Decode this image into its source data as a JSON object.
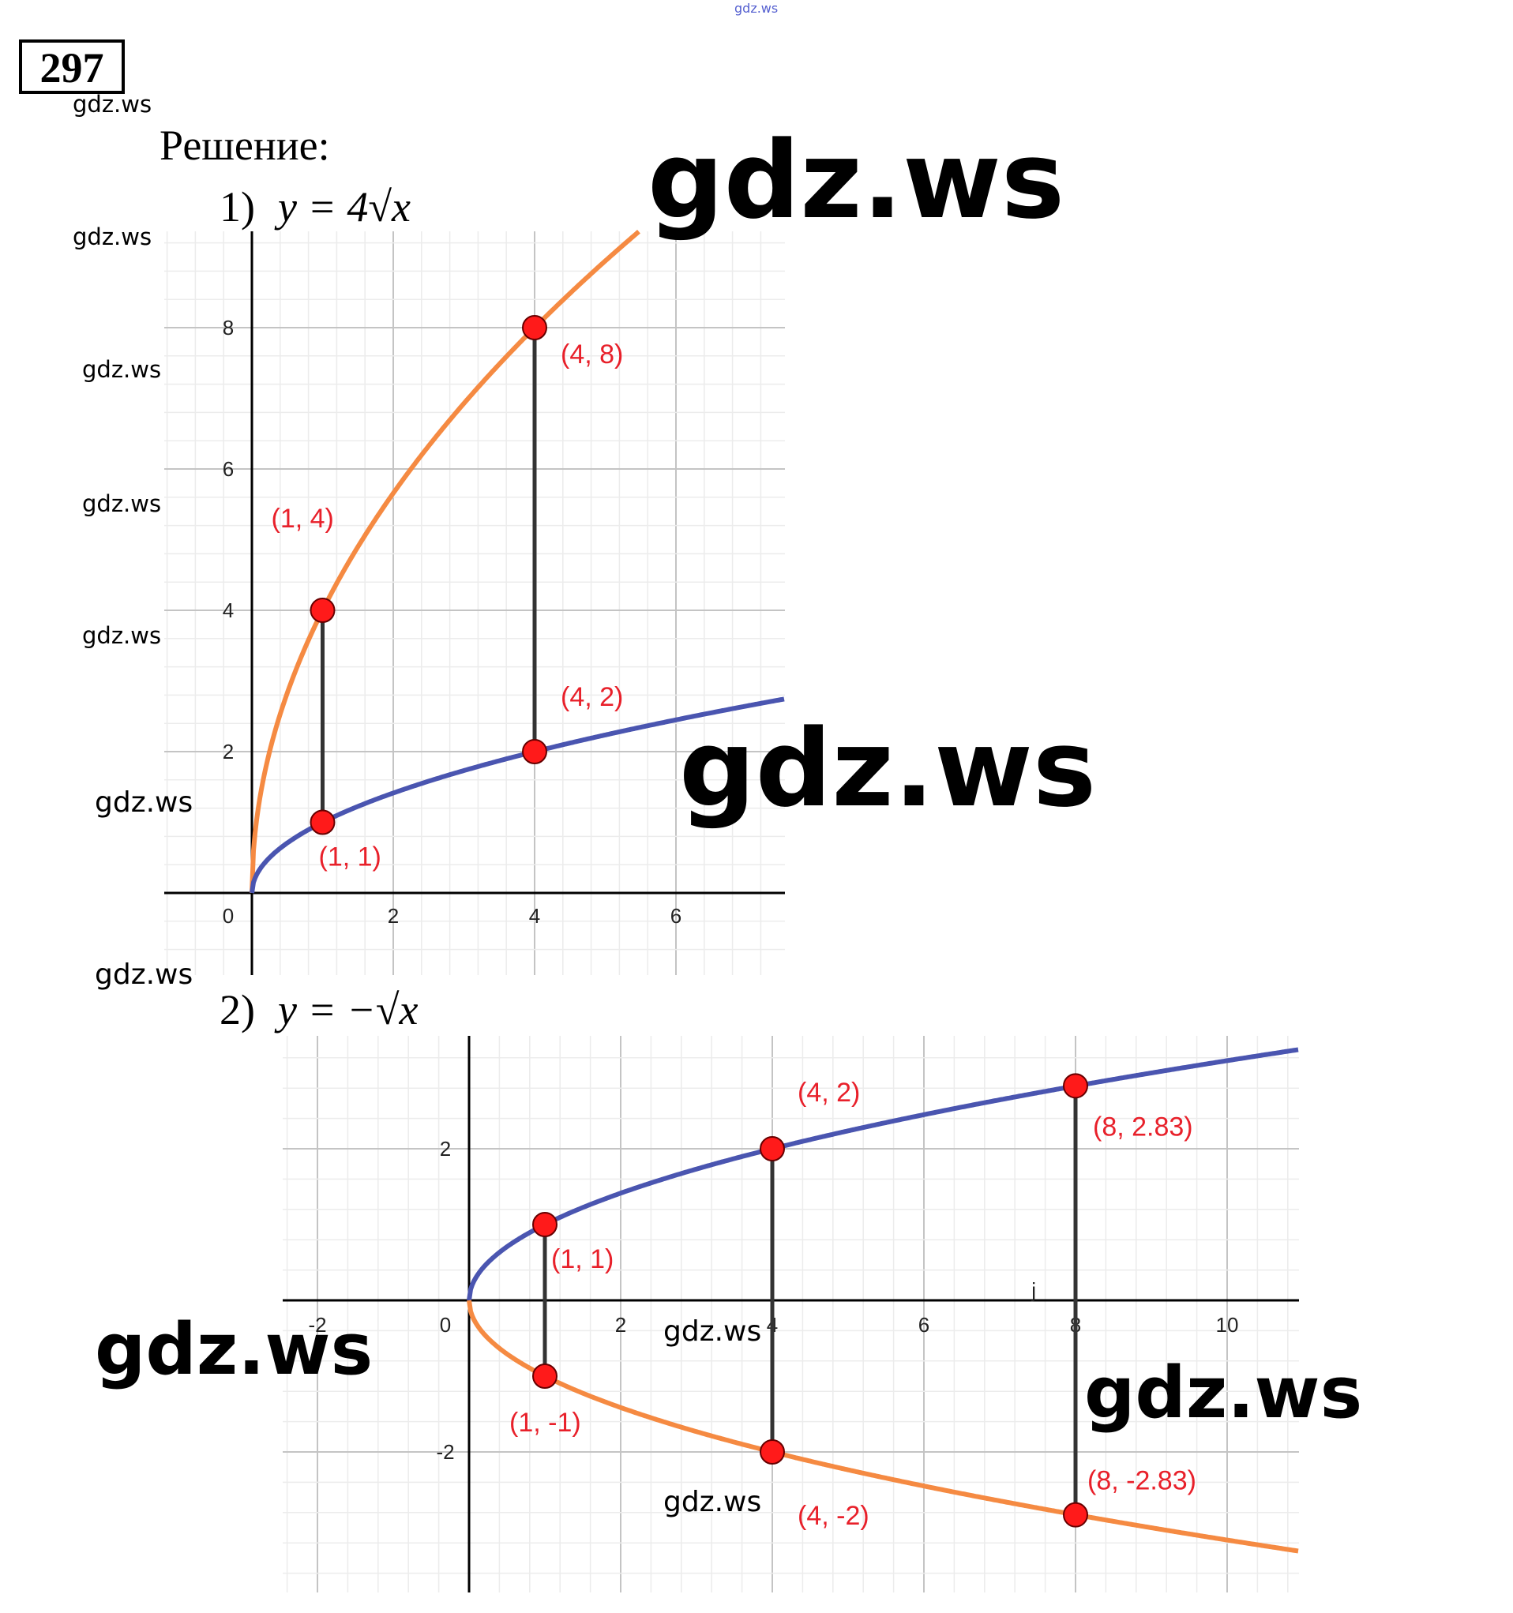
{
  "header": {
    "problem_number": "297",
    "solution_label": "Решение:",
    "part1_label": "1)",
    "part1_formula": "y = 4√x",
    "part2_label": "2)",
    "part2_formula": "y = −√x"
  },
  "watermark": "gdz.ws",
  "colors": {
    "orange": "#f58a42",
    "blue": "#4a55b0",
    "point": "#ff1a1a",
    "label": "#e8202a"
  },
  "chart_data": [
    {
      "type": "line",
      "title": "y = 4√x",
      "xlim": [
        -1.2,
        7.5
      ],
      "ylim": [
        -1.2,
        9.4
      ],
      "x_ticks": [
        "0",
        "2",
        "4",
        "6"
      ],
      "y_ticks": [
        "2",
        "4",
        "6",
        "8"
      ],
      "x_tick_values": [
        0,
        2,
        4,
        6
      ],
      "y_tick_values": [
        2,
        4,
        6,
        8
      ],
      "grid": true,
      "series": [
        {
          "name": "y = 4√x",
          "color": "orange",
          "coef": 4
        },
        {
          "name": "y = √x",
          "color": "blue",
          "coef": 1
        }
      ],
      "points": [
        {
          "x": 1,
          "y": 4,
          "label": "(1, 4)"
        },
        {
          "x": 1,
          "y": 1,
          "label": "(1, 1)"
        },
        {
          "x": 4,
          "y": 8,
          "label": "(4, 8)"
        },
        {
          "x": 4,
          "y": 2,
          "label": "(4, 2)"
        }
      ],
      "segments": [
        [
          1,
          1,
          1,
          4
        ],
        [
          4,
          2,
          4,
          8
        ]
      ]
    },
    {
      "type": "line",
      "title": "y = −√x",
      "xlim": [
        -2.4,
        11
      ],
      "ylim": [
        -4,
        3.5
      ],
      "x_ticks": [
        "-2",
        "0",
        "2",
        "4",
        "6",
        "8",
        "10"
      ],
      "y_ticks": [
        "2",
        "-2"
      ],
      "x_tick_values": [
        -2,
        0,
        2,
        4,
        6,
        8,
        10
      ],
      "y_tick_values": [
        2,
        -2
      ],
      "grid": true,
      "series": [
        {
          "name": "y = √x",
          "color": "blue",
          "coef": 1
        },
        {
          "name": "y = −√x",
          "color": "orange",
          "coef": -1
        }
      ],
      "points": [
        {
          "x": 1,
          "y": 1,
          "label": "(1, 1)"
        },
        {
          "x": 1,
          "y": -1,
          "label": "(1, -1)"
        },
        {
          "x": 4,
          "y": 2,
          "label": "(4, 2)"
        },
        {
          "x": 4,
          "y": -2,
          "label": "(4, -2)"
        },
        {
          "x": 8,
          "y": 2.83,
          "label": "(8, 2.83)"
        },
        {
          "x": 8,
          "y": -2.83,
          "label": "(8, -2.83)"
        }
      ],
      "segments": [
        [
          1,
          -1,
          1,
          1
        ],
        [
          4,
          -2,
          4,
          2
        ],
        [
          8,
          -2.83,
          8,
          2.83
        ]
      ],
      "stray_mark": "j"
    }
  ]
}
